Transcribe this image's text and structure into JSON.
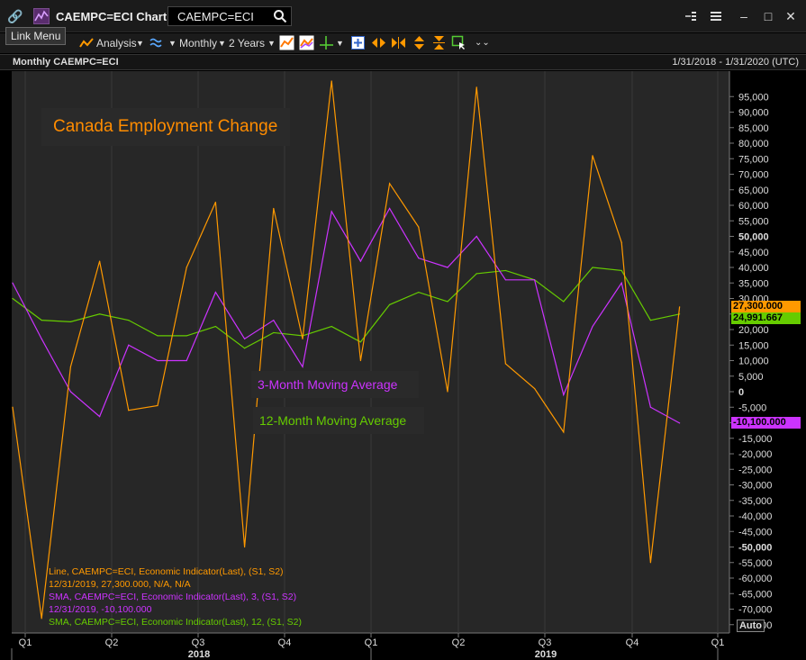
{
  "window": {
    "title": "CAEMPC=ECI Chart",
    "ric_value": "CAEMPC=ECI",
    "tooltip": "Link Menu"
  },
  "toolbar": {
    "analysis_label": "Analysis",
    "interval_label": "Monthly",
    "range_label": "2 Years"
  },
  "chart_header": {
    "title": "Monthly CAEMPC=ECI",
    "date_range": "1/31/2018 - 1/31/2020 (UTC)"
  },
  "colors": {
    "line": "#ff9900",
    "sma3": "#cc33ff",
    "sma12": "#66cc00",
    "background": "#272727"
  },
  "annotations": {
    "title": "Canada Employment Change",
    "sma3_label": "3-Month Moving Average",
    "sma12_label": "12-Month Moving Average"
  },
  "legend": [
    {
      "text": "Line, CAEMPC=ECI, Economic Indicator(Last), (S1, S2)",
      "color": "#ff9900"
    },
    {
      "text": "12/31/2019, 27,300.000, N/A, N/A",
      "color": "#ff9900"
    },
    {
      "text": "SMA, CAEMPC=ECI, Economic Indicator(Last),  3, (S1, S2)",
      "color": "#cc33ff"
    },
    {
      "text": "12/31/2019, -10,100.000",
      "color": "#cc33ff"
    },
    {
      "text": "SMA, CAEMPC=ECI, Economic Indicator(Last),  12, (S1, S2)",
      "color": "#66cc00"
    }
  ],
  "badges": {
    "line": "27,300.000",
    "sma12": "24,991.667",
    "sma3": "-10,100.000"
  },
  "auto_label": "Auto",
  "chart_data": {
    "type": "line",
    "x": [
      "2018-01",
      "2018-02",
      "2018-03",
      "2018-04",
      "2018-05",
      "2018-06",
      "2018-07",
      "2018-08",
      "2018-09",
      "2018-10",
      "2018-11",
      "2018-12",
      "2019-01",
      "2019-02",
      "2019-03",
      "2019-04",
      "2019-05",
      "2019-06",
      "2019-07",
      "2019-08",
      "2019-09",
      "2019-10",
      "2019-11",
      "2019-12"
    ],
    "series": [
      {
        "name": "Line, CAEMPC=ECI",
        "values": [
          -5000,
          -73000,
          8000,
          42000,
          -6000,
          -4500,
          40000,
          61000,
          -50000,
          59000,
          17000,
          100000,
          10000,
          67000,
          53000,
          0,
          98000,
          9000,
          1000,
          -13000,
          76000,
          48000,
          -55000,
          27300
        ]
      },
      {
        "name": "SMA 3",
        "values": [
          35000,
          17000,
          0,
          -8000,
          15000,
          10000,
          10000,
          32000,
          17000,
          23000,
          8000,
          58000,
          42000,
          59000,
          43000,
          40000,
          50000,
          36000,
          36000,
          -1000,
          21000,
          35000,
          -5000,
          -10100
        ]
      },
      {
        "name": "SMA 12",
        "values": [
          30000,
          23000,
          22500,
          25000,
          23000,
          18000,
          18000,
          21000,
          14000,
          19000,
          18000,
          21000,
          16000,
          28000,
          32000,
          29000,
          38000,
          39000,
          36000,
          29000,
          40000,
          39000,
          23000,
          24991.667
        ]
      }
    ],
    "y_ticks": [
      "95,000",
      "90,000",
      "85,000",
      "80,000",
      "75,000",
      "70,000",
      "65,000",
      "60,000",
      "55,000",
      "50,000",
      "45,000",
      "40,000",
      "35,000",
      "30,000",
      "25,000",
      "20,000",
      "15,000",
      "10,000",
      "5,000",
      "0",
      "-5,000",
      "-10,000",
      "-15,000",
      "-20,000",
      "-25,000",
      "-30,000",
      "-35,000",
      "-40,000",
      "-45,000",
      "-50,000",
      "-55,000",
      "-60,000",
      "-65,000",
      "-70,000",
      "-75,000"
    ],
    "y_tick_values": [
      95000,
      90000,
      85000,
      80000,
      75000,
      70000,
      65000,
      60000,
      55000,
      50000,
      45000,
      40000,
      35000,
      30000,
      25000,
      20000,
      15000,
      10000,
      5000,
      0,
      -5000,
      -10000,
      -15000,
      -20000,
      -25000,
      -30000,
      -35000,
      -40000,
      -45000,
      -50000,
      -55000,
      -60000,
      -65000,
      -70000,
      -75000
    ],
    "bold_ticks": [
      50000,
      0,
      -50000
    ],
    "x_quarter_ticks": [
      "Q1",
      "Q2",
      "Q3",
      "Q4",
      "Q1",
      "Q2",
      "Q3",
      "Q4",
      "Q1"
    ],
    "x_year_labels": [
      "2018",
      "2019"
    ],
    "ylim": [
      -80000,
      100000
    ]
  }
}
